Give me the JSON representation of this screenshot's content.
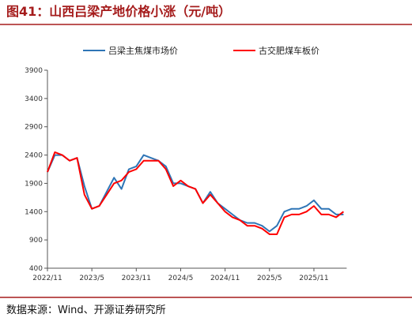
{
  "chart_data": {
    "type": "line",
    "title": "图41：山西吕梁产地价格小涨（元/吨）",
    "source": "数据来源：Wind、开源证券研究所",
    "categories": [
      "2022/11",
      null,
      null,
      null,
      null,
      null,
      "2023/5",
      null,
      null,
      null,
      null,
      null,
      "2023/11",
      null,
      null,
      null,
      null,
      null,
      "2024/5",
      null,
      null,
      null,
      null,
      null,
      "2024/11",
      null,
      null,
      null,
      null,
      null,
      "2025/5",
      null,
      null,
      null,
      null,
      null,
      "2025/11",
      null,
      null,
      null,
      null
    ],
    "series": [
      {
        "name": "吕梁主焦煤市场价",
        "color": "#2e75b6",
        "values": [
          2100,
          2400,
          2400,
          2300,
          2350,
          1850,
          1450,
          1500,
          1750,
          2000,
          1800,
          2150,
          2200,
          2400,
          2350,
          2300,
          2200,
          1900,
          1900,
          1850,
          1800,
          1550,
          1750,
          1550,
          1450,
          1350,
          1250,
          1200,
          1200,
          1150,
          1050,
          1150,
          1400,
          1450,
          1450,
          1500,
          1600,
          1450,
          1450,
          1350,
          1350
        ]
      },
      {
        "name": "古交肥煤车板价",
        "color": "#ff0000",
        "values": [
          2100,
          2450,
          2400,
          2300,
          2350,
          1700,
          1450,
          1500,
          1700,
          1900,
          1950,
          2100,
          2150,
          2300,
          2300,
          2300,
          2150,
          1850,
          1950,
          1850,
          1800,
          1550,
          1700,
          1550,
          1400,
          1300,
          1250,
          1150,
          1150,
          1100,
          1000,
          1000,
          1300,
          1350,
          1350,
          1400,
          1500,
          1350,
          1350,
          1300,
          1400
        ]
      }
    ],
    "ylim": [
      400,
      3900
    ],
    "yticks": [
      400,
      900,
      1400,
      1900,
      2400,
      2900,
      3400,
      3900
    ]
  }
}
